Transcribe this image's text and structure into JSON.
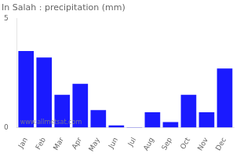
{
  "chart_data": {
    "type": "bar",
    "title": "In Salah : precipitation (mm)",
    "categories": [
      "Jan",
      "Feb",
      "Mar",
      "Apr",
      "May",
      "Jun",
      "Jul",
      "Aug",
      "Sep",
      "Oct",
      "Nov",
      "Dec"
    ],
    "values": [
      3.5,
      3.2,
      1.5,
      2.0,
      0.8,
      0.1,
      0.02,
      0.7,
      0.25,
      1.5,
      0.7,
      2.7
    ],
    "color": "#1a1aff",
    "ylim": [
      0,
      5
    ],
    "yticks": [
      0,
      5
    ],
    "grid": false,
    "annotations": [
      "www.allmetsat.com"
    ]
  }
}
